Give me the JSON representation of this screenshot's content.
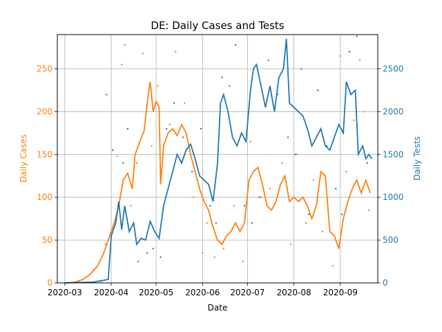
{
  "chart_data": {
    "type": "line",
    "title": "DE: Daily Cases and Tests",
    "xlabel": "Date",
    "ylabel_left": "Daily Cases",
    "ylabel_right": "Daily Tests",
    "grid": true,
    "x_ticks": [
      "2020-03",
      "2020-04",
      "2020-05",
      "2020-06",
      "2020-07",
      "2020-08",
      "2020-09"
    ],
    "y_left_ticks": [
      "0",
      "50",
      "100",
      "150",
      "200",
      "250"
    ],
    "y_right_ticks": [
      "0",
      "500",
      "1000",
      "1500",
      "2000",
      "2500"
    ],
    "xlim": [
      "2020-02-25",
      "2020-09-26"
    ],
    "ylim_left": [
      0,
      290
    ],
    "ylim_right": [
      0,
      2900
    ],
    "colors": {
      "cases": "#ff7f0e",
      "tests": "#1f77b4"
    },
    "series": [
      {
        "key": "cases",
        "axis": "left",
        "color": "#ff7f0e",
        "line": [
          [
            "2020-03-01",
            0
          ],
          [
            "2020-03-08",
            1
          ],
          [
            "2020-03-13",
            4
          ],
          [
            "2020-03-18",
            10
          ],
          [
            "2020-03-23",
            20
          ],
          [
            "2020-03-27",
            35
          ],
          [
            "2020-03-31",
            55
          ],
          [
            "2020-04-03",
            70
          ],
          [
            "2020-04-06",
            90
          ],
          [
            "2020-04-09",
            120
          ],
          [
            "2020-04-12",
            128
          ],
          [
            "2020-04-15",
            110
          ],
          [
            "2020-04-17",
            150
          ],
          [
            "2020-04-20",
            165
          ],
          [
            "2020-04-23",
            178
          ],
          [
            "2020-04-25",
            210
          ],
          [
            "2020-04-27",
            235
          ],
          [
            "2020-04-29",
            200
          ],
          [
            "2020-05-01",
            212
          ],
          [
            "2020-05-03",
            205
          ],
          [
            "2020-05-04",
            115
          ],
          [
            "2020-05-06",
            160
          ],
          [
            "2020-05-09",
            175
          ],
          [
            "2020-05-12",
            180
          ],
          [
            "2020-05-15",
            172
          ],
          [
            "2020-05-18",
            185
          ],
          [
            "2020-05-21",
            175
          ],
          [
            "2020-05-24",
            150
          ],
          [
            "2020-05-27",
            130
          ],
          [
            "2020-05-30",
            110
          ],
          [
            "2020-06-02",
            95
          ],
          [
            "2020-06-05",
            85
          ],
          [
            "2020-06-08",
            65
          ],
          [
            "2020-06-11",
            50
          ],
          [
            "2020-06-14",
            45
          ],
          [
            "2020-06-17",
            55
          ],
          [
            "2020-06-20",
            60
          ],
          [
            "2020-06-23",
            70
          ],
          [
            "2020-06-26",
            60
          ],
          [
            "2020-06-29",
            70
          ],
          [
            "2020-07-02",
            120
          ],
          [
            "2020-07-05",
            130
          ],
          [
            "2020-07-08",
            135
          ],
          [
            "2020-07-11",
            115
          ],
          [
            "2020-07-14",
            90
          ],
          [
            "2020-07-17",
            85
          ],
          [
            "2020-07-20",
            95
          ],
          [
            "2020-07-23",
            115
          ],
          [
            "2020-07-26",
            125
          ],
          [
            "2020-07-29",
            95
          ],
          [
            "2020-08-01",
            100
          ],
          [
            "2020-08-04",
            95
          ],
          [
            "2020-08-07",
            100
          ],
          [
            "2020-08-10",
            90
          ],
          [
            "2020-08-13",
            75
          ],
          [
            "2020-08-16",
            90
          ],
          [
            "2020-08-19",
            130
          ],
          [
            "2020-08-22",
            125
          ],
          [
            "2020-08-25",
            60
          ],
          [
            "2020-08-28",
            55
          ],
          [
            "2020-08-31",
            40
          ],
          [
            "2020-09-03",
            75
          ],
          [
            "2020-09-06",
            95
          ],
          [
            "2020-09-09",
            110
          ],
          [
            "2020-09-12",
            120
          ],
          [
            "2020-09-15",
            105
          ],
          [
            "2020-09-18",
            120
          ],
          [
            "2020-09-21",
            105
          ]
        ],
        "points": [
          [
            "2020-03-10",
            2
          ],
          [
            "2020-03-20",
            15
          ],
          [
            "2020-03-28",
            45
          ],
          [
            "2020-04-05",
            148
          ],
          [
            "2020-04-08",
            255
          ],
          [
            "2020-04-10",
            278
          ],
          [
            "2020-04-14",
            90
          ],
          [
            "2020-04-18",
            140
          ],
          [
            "2020-04-22",
            268
          ],
          [
            "2020-04-28",
            160
          ],
          [
            "2020-05-02",
            230
          ],
          [
            "2020-05-05",
            80
          ],
          [
            "2020-05-10",
            185
          ],
          [
            "2020-05-14",
            270
          ],
          [
            "2020-05-20",
            210
          ],
          [
            "2020-05-26",
            100
          ],
          [
            "2020-06-01",
            35
          ],
          [
            "2020-06-04",
            70
          ],
          [
            "2020-06-09",
            30
          ],
          [
            "2020-06-15",
            40
          ],
          [
            "2020-06-22",
            90
          ],
          [
            "2020-06-28",
            25
          ],
          [
            "2020-07-03",
            165
          ],
          [
            "2020-07-10",
            100
          ],
          [
            "2020-07-16",
            110
          ],
          [
            "2020-07-24",
            140
          ],
          [
            "2020-07-30",
            45
          ],
          [
            "2020-08-03",
            150
          ],
          [
            "2020-08-09",
            70
          ],
          [
            "2020-08-14",
            120
          ],
          [
            "2020-08-20",
            60
          ],
          [
            "2020-08-27",
            20
          ],
          [
            "2020-09-01",
            265
          ],
          [
            "2020-09-05",
            130
          ],
          [
            "2020-09-10",
            190
          ],
          [
            "2020-09-14",
            260
          ],
          [
            "2020-09-17",
            200
          ],
          [
            "2020-09-20",
            85
          ]
        ]
      },
      {
        "key": "tests",
        "axis": "right",
        "color": "#1f77b4",
        "line": [
          [
            "2020-03-01",
            0
          ],
          [
            "2020-03-10",
            5
          ],
          [
            "2020-03-20",
            10
          ],
          [
            "2020-03-27",
            30
          ],
          [
            "2020-03-30",
            40
          ],
          [
            "2020-04-01",
            550
          ],
          [
            "2020-04-04",
            700
          ],
          [
            "2020-04-06",
            950
          ],
          [
            "2020-04-08",
            620
          ],
          [
            "2020-04-10",
            900
          ],
          [
            "2020-04-13",
            600
          ],
          [
            "2020-04-16",
            700
          ],
          [
            "2020-04-18",
            450
          ],
          [
            "2020-04-21",
            520
          ],
          [
            "2020-04-24",
            500
          ],
          [
            "2020-04-27",
            720
          ],
          [
            "2020-04-30",
            600
          ],
          [
            "2020-05-03",
            520
          ],
          [
            "2020-05-06",
            900
          ],
          [
            "2020-05-09",
            1100
          ],
          [
            "2020-05-12",
            1300
          ],
          [
            "2020-05-15",
            1500
          ],
          [
            "2020-05-18",
            1400
          ],
          [
            "2020-05-21",
            1550
          ],
          [
            "2020-05-24",
            1620
          ],
          [
            "2020-05-27",
            1450
          ],
          [
            "2020-05-30",
            1250
          ],
          [
            "2020-06-02",
            1200
          ],
          [
            "2020-06-05",
            1150
          ],
          [
            "2020-06-08",
            950
          ],
          [
            "2020-06-11",
            1400
          ],
          [
            "2020-06-13",
            2100
          ],
          [
            "2020-06-15",
            2200
          ],
          [
            "2020-06-18",
            2000
          ],
          [
            "2020-06-21",
            1700
          ],
          [
            "2020-06-24",
            1600
          ],
          [
            "2020-06-27",
            1750
          ],
          [
            "2020-06-30",
            1650
          ],
          [
            "2020-07-03",
            2250
          ],
          [
            "2020-07-05",
            2500
          ],
          [
            "2020-07-07",
            2550
          ],
          [
            "2020-07-10",
            2300
          ],
          [
            "2020-07-13",
            2050
          ],
          [
            "2020-07-16",
            2300
          ],
          [
            "2020-07-19",
            2000
          ],
          [
            "2020-07-22",
            2400
          ],
          [
            "2020-07-25",
            2500
          ],
          [
            "2020-07-27",
            2850
          ],
          [
            "2020-07-29",
            2100
          ],
          [
            "2020-08-01",
            2050
          ],
          [
            "2020-08-04",
            2000
          ],
          [
            "2020-08-07",
            1950
          ],
          [
            "2020-08-10",
            1800
          ],
          [
            "2020-08-13",
            1600
          ],
          [
            "2020-08-16",
            1700
          ],
          [
            "2020-08-19",
            1800
          ],
          [
            "2020-08-22",
            1600
          ],
          [
            "2020-08-25",
            1550
          ],
          [
            "2020-08-28",
            1700
          ],
          [
            "2020-08-31",
            1850
          ],
          [
            "2020-09-03",
            1750
          ],
          [
            "2020-09-05",
            2350
          ],
          [
            "2020-09-08",
            2200
          ],
          [
            "2020-09-11",
            2250
          ],
          [
            "2020-09-13",
            1500
          ],
          [
            "2020-09-16",
            1600
          ],
          [
            "2020-09-18",
            1450
          ],
          [
            "2020-09-20",
            1500
          ],
          [
            "2020-09-22",
            1450
          ]
        ],
        "points": [
          [
            "2020-03-25",
            20
          ],
          [
            "2020-03-29",
            2200
          ],
          [
            "2020-04-02",
            1550
          ],
          [
            "2020-04-09",
            1400
          ],
          [
            "2020-04-12",
            1800
          ],
          [
            "2020-04-19",
            250
          ],
          [
            "2020-04-25",
            350
          ],
          [
            "2020-04-29",
            400
          ],
          [
            "2020-05-04",
            300
          ],
          [
            "2020-05-08",
            1800
          ],
          [
            "2020-05-13",
            2100
          ],
          [
            "2020-05-19",
            1700
          ],
          [
            "2020-05-25",
            1300
          ],
          [
            "2020-05-31",
            1800
          ],
          [
            "2020-06-06",
            900
          ],
          [
            "2020-06-10",
            700
          ],
          [
            "2020-06-14",
            2400
          ],
          [
            "2020-06-19",
            2300
          ],
          [
            "2020-06-23",
            2780
          ],
          [
            "2020-06-29",
            900
          ],
          [
            "2020-07-04",
            700
          ],
          [
            "2020-07-09",
            1000
          ],
          [
            "2020-07-15",
            2600
          ],
          [
            "2020-07-21",
            2200
          ],
          [
            "2020-07-28",
            1700
          ],
          [
            "2020-08-02",
            1500
          ],
          [
            "2020-08-06",
            2500
          ],
          [
            "2020-08-11",
            800
          ],
          [
            "2020-08-17",
            2250
          ],
          [
            "2020-08-23",
            1600
          ],
          [
            "2020-08-29",
            1100
          ],
          [
            "2020-09-02",
            800
          ],
          [
            "2020-09-07",
            2700
          ],
          [
            "2020-09-12",
            2880
          ],
          [
            "2020-09-19",
            1400
          ]
        ]
      }
    ]
  }
}
